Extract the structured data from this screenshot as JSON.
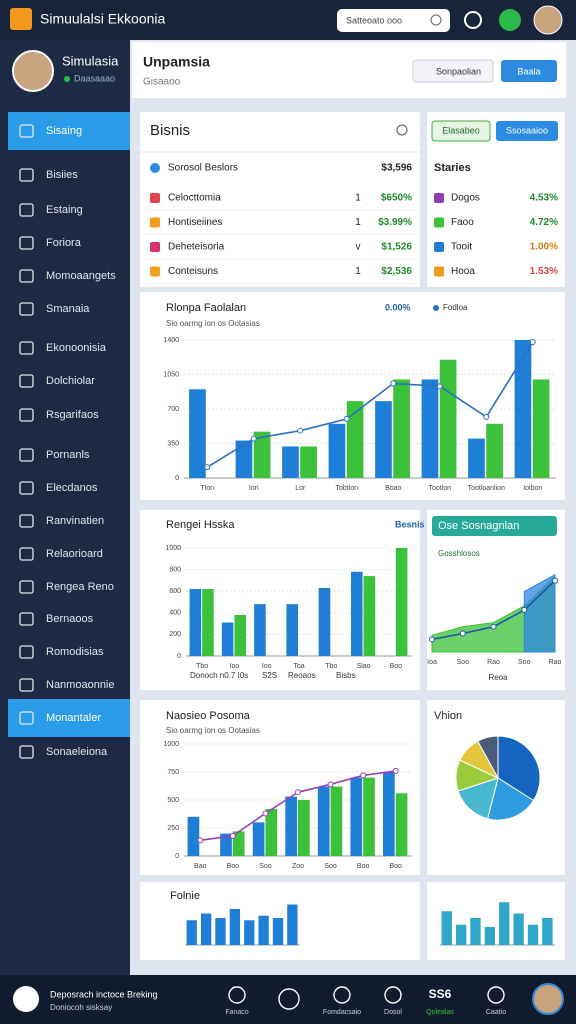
{
  "header": {
    "title": "Simuulalsi Ekkoonia",
    "search": "Satteoato ooo"
  },
  "profile": {
    "name": "Simulasia",
    "status": "Daasaaao"
  },
  "menu": {
    "items": [
      "Sisaing",
      "Bisiies",
      "Estaing",
      "Foriora",
      "Momoaangets",
      "Smanaia",
      "Ekonoonisia",
      "Dolchiolar",
      "Rsgarifaos",
      "Pornanls",
      "Elecdanos",
      "Ranvinatien",
      "Relaorioard",
      "Rengea Reno",
      "Bernaoos",
      "Romodisias",
      "Nanmoaonnie",
      "Monantaler",
      "Sonaeleiona"
    ],
    "active": [
      0,
      17
    ]
  },
  "page": {
    "title": "Unpamsia",
    "subtitle": "Gisaaoo",
    "search": "Sonpaolian",
    "button": "Baala"
  },
  "bisnis": {
    "title": "Bisnis",
    "head": [
      "Sorosol Beslors",
      "$3,596"
    ],
    "rows": [
      [
        "Celocttomia",
        "1",
        "$650%"
      ],
      [
        "Hontiseiines",
        "1",
        "$3.99%"
      ],
      [
        "Deheteisoria",
        "v",
        "$1,526"
      ],
      [
        "Conteisuns",
        "1",
        "$2,536"
      ]
    ]
  },
  "stories": {
    "tabs": [
      "Elasabeo",
      "Ssosaaioo"
    ],
    "title": "Staries",
    "rows": [
      [
        "Dogos",
        "4.53%"
      ],
      [
        "Faoo",
        "4.72%"
      ],
      [
        "Tooit",
        "1.00%"
      ],
      [
        "Hooa",
        "1.53%"
      ]
    ]
  },
  "chart_data": [
    {
      "type": "bar",
      "title": "Rlonpa Faolalan",
      "subtitle": "Sio oarmg ion os Ootasias",
      "annotation": "0.00%",
      "grid": true,
      "categories": [
        "Tlon",
        "Ion",
        "Lor",
        "Tobtlon",
        "Boao",
        "Tootlon",
        "Tootloanlion",
        "Iolbon"
      ],
      "ylim": [
        0,
        1400
      ],
      "yticks": [
        0,
        350,
        700,
        1050,
        1400
      ],
      "series": [
        {
          "type": "bar",
          "color": "#1f7fd6",
          "values": [
            900,
            380,
            320,
            550,
            780,
            1000,
            400,
            1400
          ]
        },
        {
          "type": "bar",
          "color": "#3cc23a",
          "values": [
            null,
            470,
            320,
            780,
            1000,
            1200,
            550,
            1000
          ]
        },
        {
          "type": "line",
          "name": "Fodloa",
          "color": "#2c6fc0",
          "values": [
            110,
            400,
            480,
            600,
            960,
            930,
            620,
            1380
          ]
        }
      ]
    },
    {
      "type": "bar",
      "title": "Rengei Hsska",
      "annotation": "Besnis",
      "grid": true,
      "categories": [
        "Tbo",
        "Ioo",
        "Ioo",
        "Toa",
        "Tbo",
        "Slao",
        "Boo"
      ],
      "ylim": [
        0,
        1000
      ],
      "yticks": [
        0,
        200,
        400,
        600,
        800,
        1000
      ],
      "series": [
        {
          "type": "bar",
          "color": "#1f7fd6",
          "values": [
            620,
            310,
            480,
            480,
            630,
            780,
            null
          ]
        },
        {
          "type": "bar",
          "color": "#3cc23a",
          "values": [
            620,
            380,
            null,
            null,
            null,
            740,
            1000
          ]
        }
      ],
      "footnotes": [
        "Donoch n0.7 I0s",
        "S2S",
        "Reoaos",
        "Bisbs"
      ]
    },
    {
      "type": "area",
      "title": "Ose Sosnagnlan",
      "subtitle": "Gosshlosos",
      "footnote": "Reoa",
      "categories": [
        "Ioa",
        "Soo",
        "Rao",
        "Soo",
        "Rao"
      ],
      "ylim": [
        0,
        1000
      ],
      "series": [
        {
          "type": "area",
          "color": "#3cc23a",
          "values": [
            200,
            300,
            350,
            550,
            900
          ]
        },
        {
          "type": "area",
          "color": "#2f86e0",
          "values": [
            null,
            null,
            null,
            720,
            920
          ]
        },
        {
          "type": "line",
          "color": "#1a55a8",
          "values": [
            150,
            220,
            300,
            500,
            850
          ]
        }
      ]
    },
    {
      "type": "bar",
      "title": "Naosieo Posoma",
      "subtitle": "Sio oarmg ion os Ootasias",
      "grid": true,
      "categories": [
        "Bao",
        "Boo",
        "Soo",
        "Zoo",
        "Soo",
        "Boo",
        "Boo"
      ],
      "ylim": [
        0,
        1000
      ],
      "yticks": [
        0,
        250,
        500,
        750,
        1000
      ],
      "series": [
        {
          "type": "bar",
          "color": "#1f7fd6",
          "values": [
            350,
            200,
            300,
            530,
            620,
            700,
            750
          ]
        },
        {
          "type": "bar",
          "color": "#3cc23a",
          "values": [
            null,
            220,
            420,
            500,
            620,
            700,
            560
          ]
        },
        {
          "type": "line",
          "color": "#9c3fb5",
          "values": [
            140,
            180,
            380,
            570,
            640,
            720,
            760
          ]
        }
      ]
    },
    {
      "type": "pie",
      "title": "Vhion",
      "values": [
        34,
        20,
        16,
        12,
        10,
        8
      ],
      "colors": [
        "#1565c0",
        "#2f9be0",
        "#48b8d0",
        "#9ccc3c",
        "#e3c43a",
        "#4a5a7a"
      ]
    },
    {
      "type": "bar",
      "title": "Folnie",
      "categories": [
        null,
        null,
        null,
        null,
        null,
        null,
        null,
        null
      ],
      "ylim": [
        0,
        100
      ],
      "series": [
        {
          "type": "bar",
          "color": "#1f7fd6",
          "values": [
            55,
            70,
            60,
            80,
            55,
            65,
            60,
            90
          ]
        }
      ]
    },
    {
      "type": "bar",
      "categories": [
        null,
        null,
        null,
        null,
        null,
        null,
        null,
        null
      ],
      "ylim": [
        0,
        100
      ],
      "series": [
        {
          "type": "bar",
          "color": "#2fa6c9",
          "values": [
            75,
            45,
            60,
            40,
            95,
            70,
            45,
            60
          ]
        }
      ]
    }
  ],
  "footer": {
    "title": "Deposrach inctoce Breking",
    "subtitle": "Doniocoh sisksay",
    "value": "SS6",
    "labels": [
      "Fanaco",
      "Fomdacsaio",
      "Dosol",
      "Qolealas",
      "Caatio"
    ]
  }
}
